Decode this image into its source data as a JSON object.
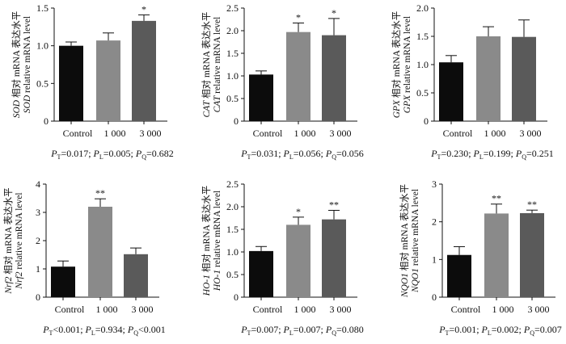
{
  "chart_data": [
    {
      "type": "bar",
      "gene": "SOD",
      "ylabel_cn": "相对 mRNA 表达水平",
      "ylabel_en": "relative mRNA level",
      "categories": [
        "Control",
        "1 000",
        "3 000"
      ],
      "values": [
        1.0,
        1.07,
        1.33
      ],
      "errors": [
        0.05,
        0.1,
        0.08
      ],
      "significance": [
        "",
        "",
        "*"
      ],
      "bar_colors": [
        "#0c0c0c",
        "#8a8a8a",
        "#5a5a5a"
      ],
      "ylim": [
        0,
        1.5
      ],
      "yticks": [
        "0",
        "0.5",
        "1.0",
        "1.5"
      ],
      "pvalues": {
        "T": "0.017",
        "L": "0.005",
        "Q": "0.682"
      }
    },
    {
      "type": "bar",
      "gene": "CAT",
      "ylabel_cn": "相对 mRNA 表达水平",
      "ylabel_en": "relative mRNA level",
      "categories": [
        "Control",
        "1 000",
        "3 000"
      ],
      "values": [
        1.03,
        1.97,
        1.9
      ],
      "errors": [
        0.08,
        0.2,
        0.37
      ],
      "significance": [
        "",
        "*",
        "*"
      ],
      "bar_colors": [
        "#0c0c0c",
        "#8a8a8a",
        "#5a5a5a"
      ],
      "ylim": [
        0,
        2.5
      ],
      "yticks": [
        "0",
        "0.5",
        "1.0",
        "1.5",
        "2.0",
        "2.5"
      ],
      "pvalues": {
        "T": "0.031",
        "L": "0.056",
        "Q": "0.056"
      }
    },
    {
      "type": "bar",
      "gene": "GPX",
      "ylabel_cn": "相对 mRNA 表达水平",
      "ylabel_en": "relative mRNA level",
      "categories": [
        "Control",
        "1 000",
        "3 000"
      ],
      "values": [
        1.04,
        1.5,
        1.49
      ],
      "errors": [
        0.12,
        0.17,
        0.3
      ],
      "significance": [
        "",
        "",
        ""
      ],
      "bar_colors": [
        "#0c0c0c",
        "#8a8a8a",
        "#5a5a5a"
      ],
      "ylim": [
        0,
        2.0
      ],
      "yticks": [
        "0",
        "0.5",
        "1.0",
        "1.5",
        "2.0"
      ],
      "pvalues": {
        "T": "0.230",
        "L": "0.199",
        "Q": "0.251"
      }
    },
    {
      "type": "bar",
      "gene": "Nrf2",
      "ylabel_cn": "相对 mRNA 表达水平",
      "ylabel_en": "relative mRNA level",
      "categories": [
        "Control",
        "1 000",
        "3 000"
      ],
      "values": [
        1.08,
        3.2,
        1.52
      ],
      "errors": [
        0.2,
        0.28,
        0.22
      ],
      "significance": [
        "",
        "**",
        ""
      ],
      "bar_colors": [
        "#0c0c0c",
        "#8a8a8a",
        "#5a5a5a"
      ],
      "ylim": [
        0,
        4
      ],
      "yticks": [
        "0",
        "1",
        "2",
        "3",
        "4"
      ],
      "pvalues": {
        "T": "&lt;0.001",
        "L": "0.934",
        "Q": "&lt;0.001"
      }
    },
    {
      "type": "bar",
      "gene": "HO-1",
      "ylabel_cn": "相对 mRNA 表达水平",
      "ylabel_en": "relative mRNA level",
      "categories": [
        "Control",
        "1 000",
        "3 000"
      ],
      "values": [
        1.02,
        1.6,
        1.72
      ],
      "errors": [
        0.1,
        0.17,
        0.2
      ],
      "significance": [
        "",
        "*",
        "**"
      ],
      "bar_colors": [
        "#0c0c0c",
        "#8a8a8a",
        "#5a5a5a"
      ],
      "ylim": [
        0,
        2.5
      ],
      "yticks": [
        "0",
        "0.5",
        "1.0",
        "1.5",
        "2.0",
        "2.5"
      ],
      "pvalues": {
        "T": "0.007",
        "L": "0.007",
        "Q": "0.080"
      }
    },
    {
      "type": "bar",
      "gene": "NQO1",
      "ylabel_cn": "相对 mRNA 表达水平",
      "ylabel_en": "relative mRNA level",
      "categories": [
        "Control",
        "1 000",
        "3 000"
      ],
      "values": [
        1.12,
        2.22,
        2.23
      ],
      "errors": [
        0.22,
        0.25,
        0.08
      ],
      "significance": [
        "",
        "**",
        "**"
      ],
      "bar_colors": [
        "#0c0c0c",
        "#8a8a8a",
        "#5a5a5a"
      ],
      "ylim": [
        0,
        3
      ],
      "yticks": [
        "0",
        "1",
        "2",
        "3"
      ],
      "pvalues": {
        "T": "0.001",
        "L": "0.002",
        "Q": "0.007"
      }
    }
  ]
}
